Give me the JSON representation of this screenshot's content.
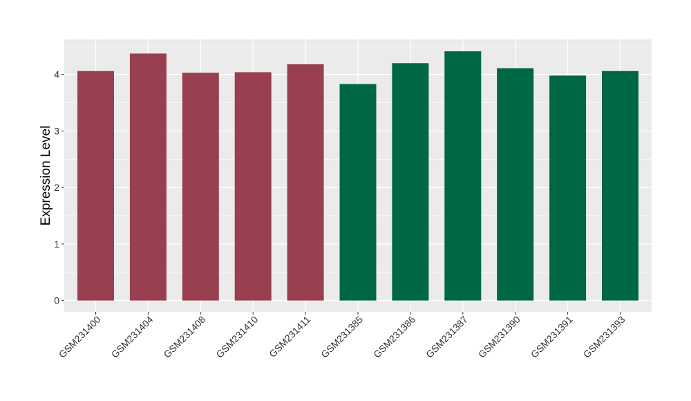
{
  "chart_data": {
    "type": "bar",
    "title": "",
    "xlabel": "",
    "ylabel": "Expression Level",
    "ylim": [
      -0.2,
      4.62
    ],
    "yticks": [
      0,
      1,
      2,
      3,
      4
    ],
    "grid": true,
    "legend": "none",
    "panel_color": "#EBEBEB",
    "grid_color": "#FFFFFF",
    "categories": [
      "GSM231400",
      "GSM231404",
      "GSM231408",
      "GSM231410",
      "GSM231411",
      "GSM231385",
      "GSM231386",
      "GSM231387",
      "GSM231390",
      "GSM231391",
      "GSM231393"
    ],
    "values": [
      4.06,
      4.37,
      4.03,
      4.04,
      4.18,
      3.83,
      4.2,
      4.41,
      4.11,
      3.98,
      4.06
    ],
    "bar_colors": [
      "#98404F",
      "#98404F",
      "#98404F",
      "#98404F",
      "#98404F",
      "#006743",
      "#006743",
      "#006743",
      "#006743",
      "#006743",
      "#006743"
    ]
  }
}
